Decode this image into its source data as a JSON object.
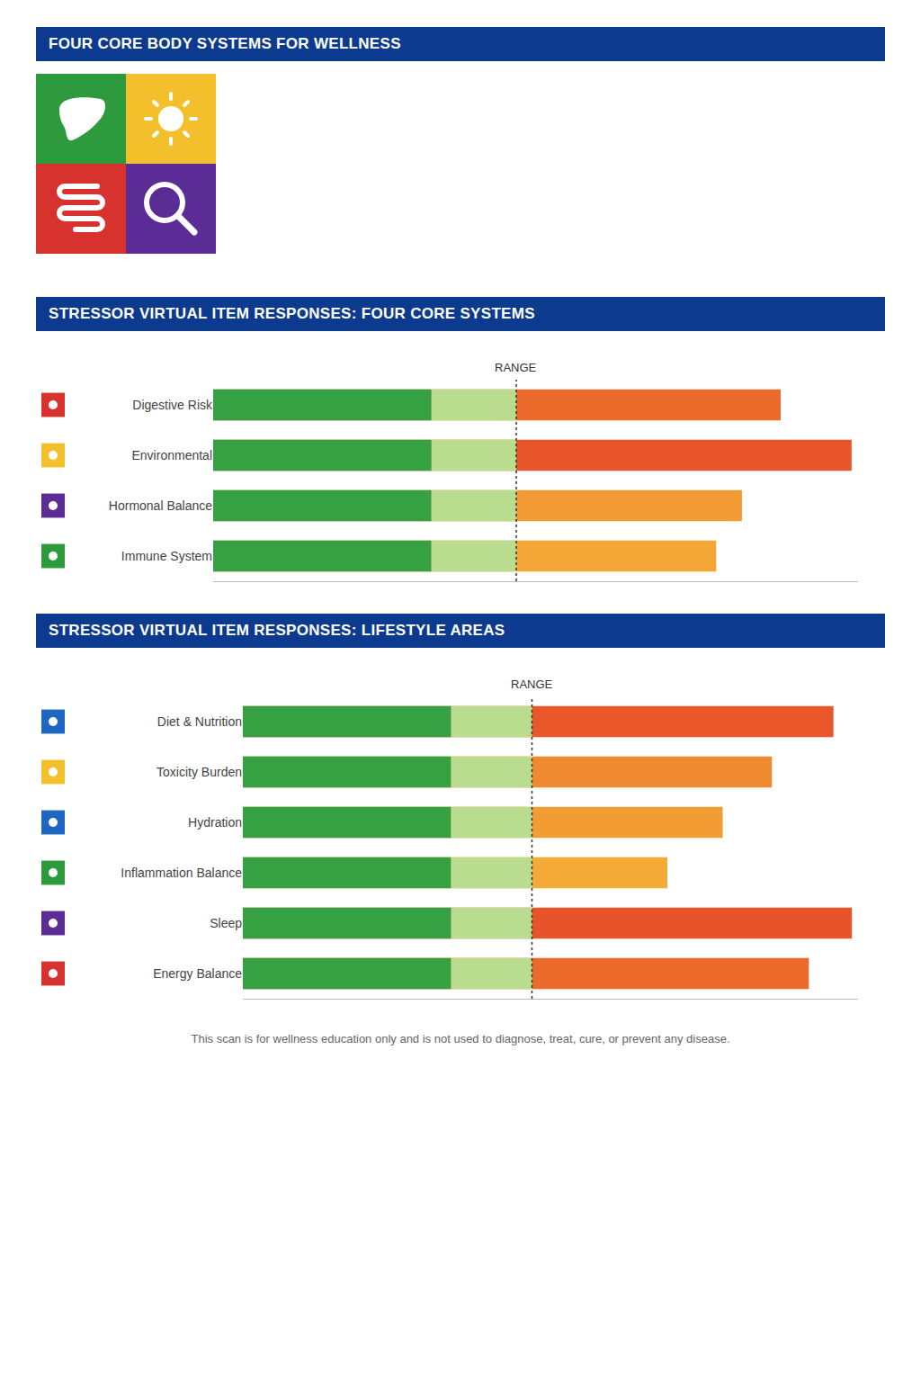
{
  "title": "FOUR CORE BODY SYSTEMS FOR WELLNESS",
  "chart_data": [
    {
      "type": "bar",
      "orientation": "horizontal",
      "title": "STRESSOR VIRTUAL ITEM RESPONSES: FOUR CORE SYSTEMS",
      "categories": [
        "Digestive Risk",
        "Environmental",
        "Hormonal Balance",
        "Immune System"
      ],
      "values": [
        88,
        99,
        82,
        78
      ],
      "colors": [
        "#ec6a2c",
        "#e9552a",
        "#f29a34",
        "#f3a636"
      ],
      "xlim": [
        0,
        100
      ],
      "xticks": [],
      "tick_labels": "y",
      "grid": false,
      "range_line": {
        "value": 47,
        "label": "RANGE"
      }
    },
    {
      "type": "bar",
      "orientation": "horizontal",
      "title": "STRESSOR VIRTUAL ITEM RESPONSES: LIFESTYLE AREAS",
      "categories": [
        "Diet & Nutrition",
        "Toxicity Burden",
        "Hydration",
        "Inflammation Balance",
        "Sleep",
        "Energy Balance"
      ],
      "values": [
        96,
        86,
        78,
        69,
        99,
        92
      ],
      "colors": [
        "#e9572b",
        "#f08a31",
        "#f29c34",
        "#f3aa37",
        "#e8532a",
        "#ec6a2c"
      ],
      "xlim": [
        0,
        100
      ],
      "xticks": [],
      "tick_labels": "y",
      "grid": false,
      "range_line": {
        "value": 47,
        "label": "RANGE"
      }
    }
  ],
  "footer": "This scan is for wellness education only and is not used to diagnose, treat, cure, or prevent any disease."
}
